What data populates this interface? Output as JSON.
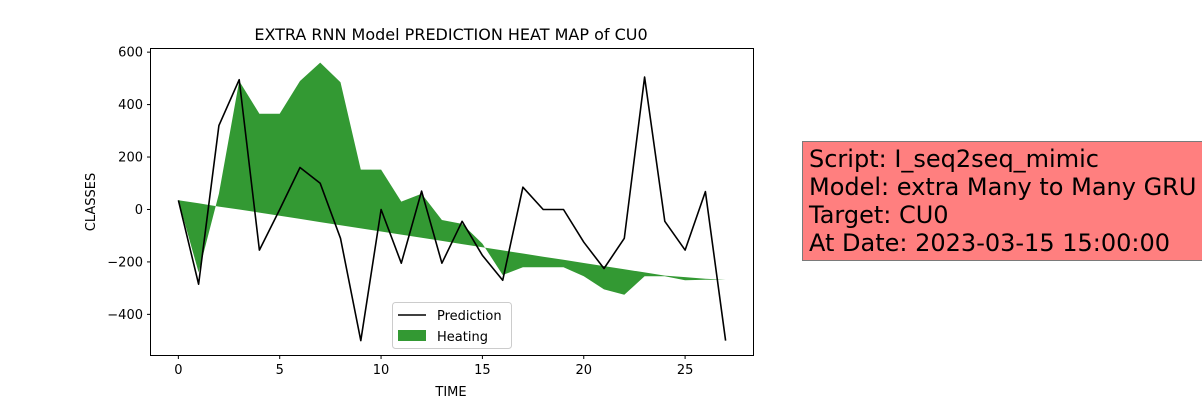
{
  "chart_data": {
    "type": "line",
    "title": "EXTRA RNN Model PREDICTION HEAT MAP of CU0",
    "xlabel": "TIME",
    "ylabel": "CLASSES",
    "xlim": [
      -1.35,
      28.35
    ],
    "ylim": [
      -555,
      612
    ],
    "x_ticks": [
      0,
      5,
      10,
      15,
      20,
      25
    ],
    "y_ticks": [
      -400,
      -200,
      0,
      200,
      400,
      600
    ],
    "x": [
      0,
      1,
      2,
      3,
      4,
      5,
      6,
      7,
      8,
      9,
      10,
      11,
      12,
      13,
      14,
      15,
      16,
      17,
      18,
      19,
      20,
      21,
      22,
      23,
      24,
      25,
      26,
      27
    ],
    "series": [
      {
        "name": "Prediction",
        "type": "line",
        "color": "#000000",
        "values": [
          35,
          -285,
          320,
          495,
          -155,
          0,
          160,
          100,
          -110,
          -500,
          0,
          -205,
          70,
          -205,
          -45,
          -175,
          -270,
          85,
          0,
          0,
          -125,
          -225,
          -110,
          505,
          -45,
          -155,
          68,
          -500
        ]
      },
      {
        "name": "Heating",
        "type": "area",
        "color": "#008000",
        "opacity": 0.8,
        "baseline": [
          35,
          24,
          11,
          0,
          -12,
          -24,
          -36,
          -48,
          -60,
          -72,
          -84,
          -96,
          -108,
          -120,
          -132,
          -144,
          -156,
          -168,
          -180,
          -192,
          -204,
          -216,
          -228,
          -240,
          -252,
          -258,
          -264,
          -268
        ],
        "values": [
          35,
          -240,
          60,
          490,
          365,
          365,
          490,
          560,
          485,
          152,
          152,
          30,
          60,
          -40,
          -55,
          -130,
          -250,
          -220,
          -220,
          -220,
          -255,
          -305,
          -325,
          -255,
          -255,
          -270,
          -268,
          -268
        ]
      }
    ],
    "legend": {
      "position": "lower center",
      "entries": [
        "Prediction",
        "Heating"
      ]
    },
    "grid": false
  },
  "info_box": {
    "background": "#ff7f7f",
    "lines": [
      "Script: I_seq2seq_mimic",
      "Model: extra Many to Many GRU",
      "Target: CU0",
      "At Date: 2023-03-15 15:00:00"
    ]
  }
}
